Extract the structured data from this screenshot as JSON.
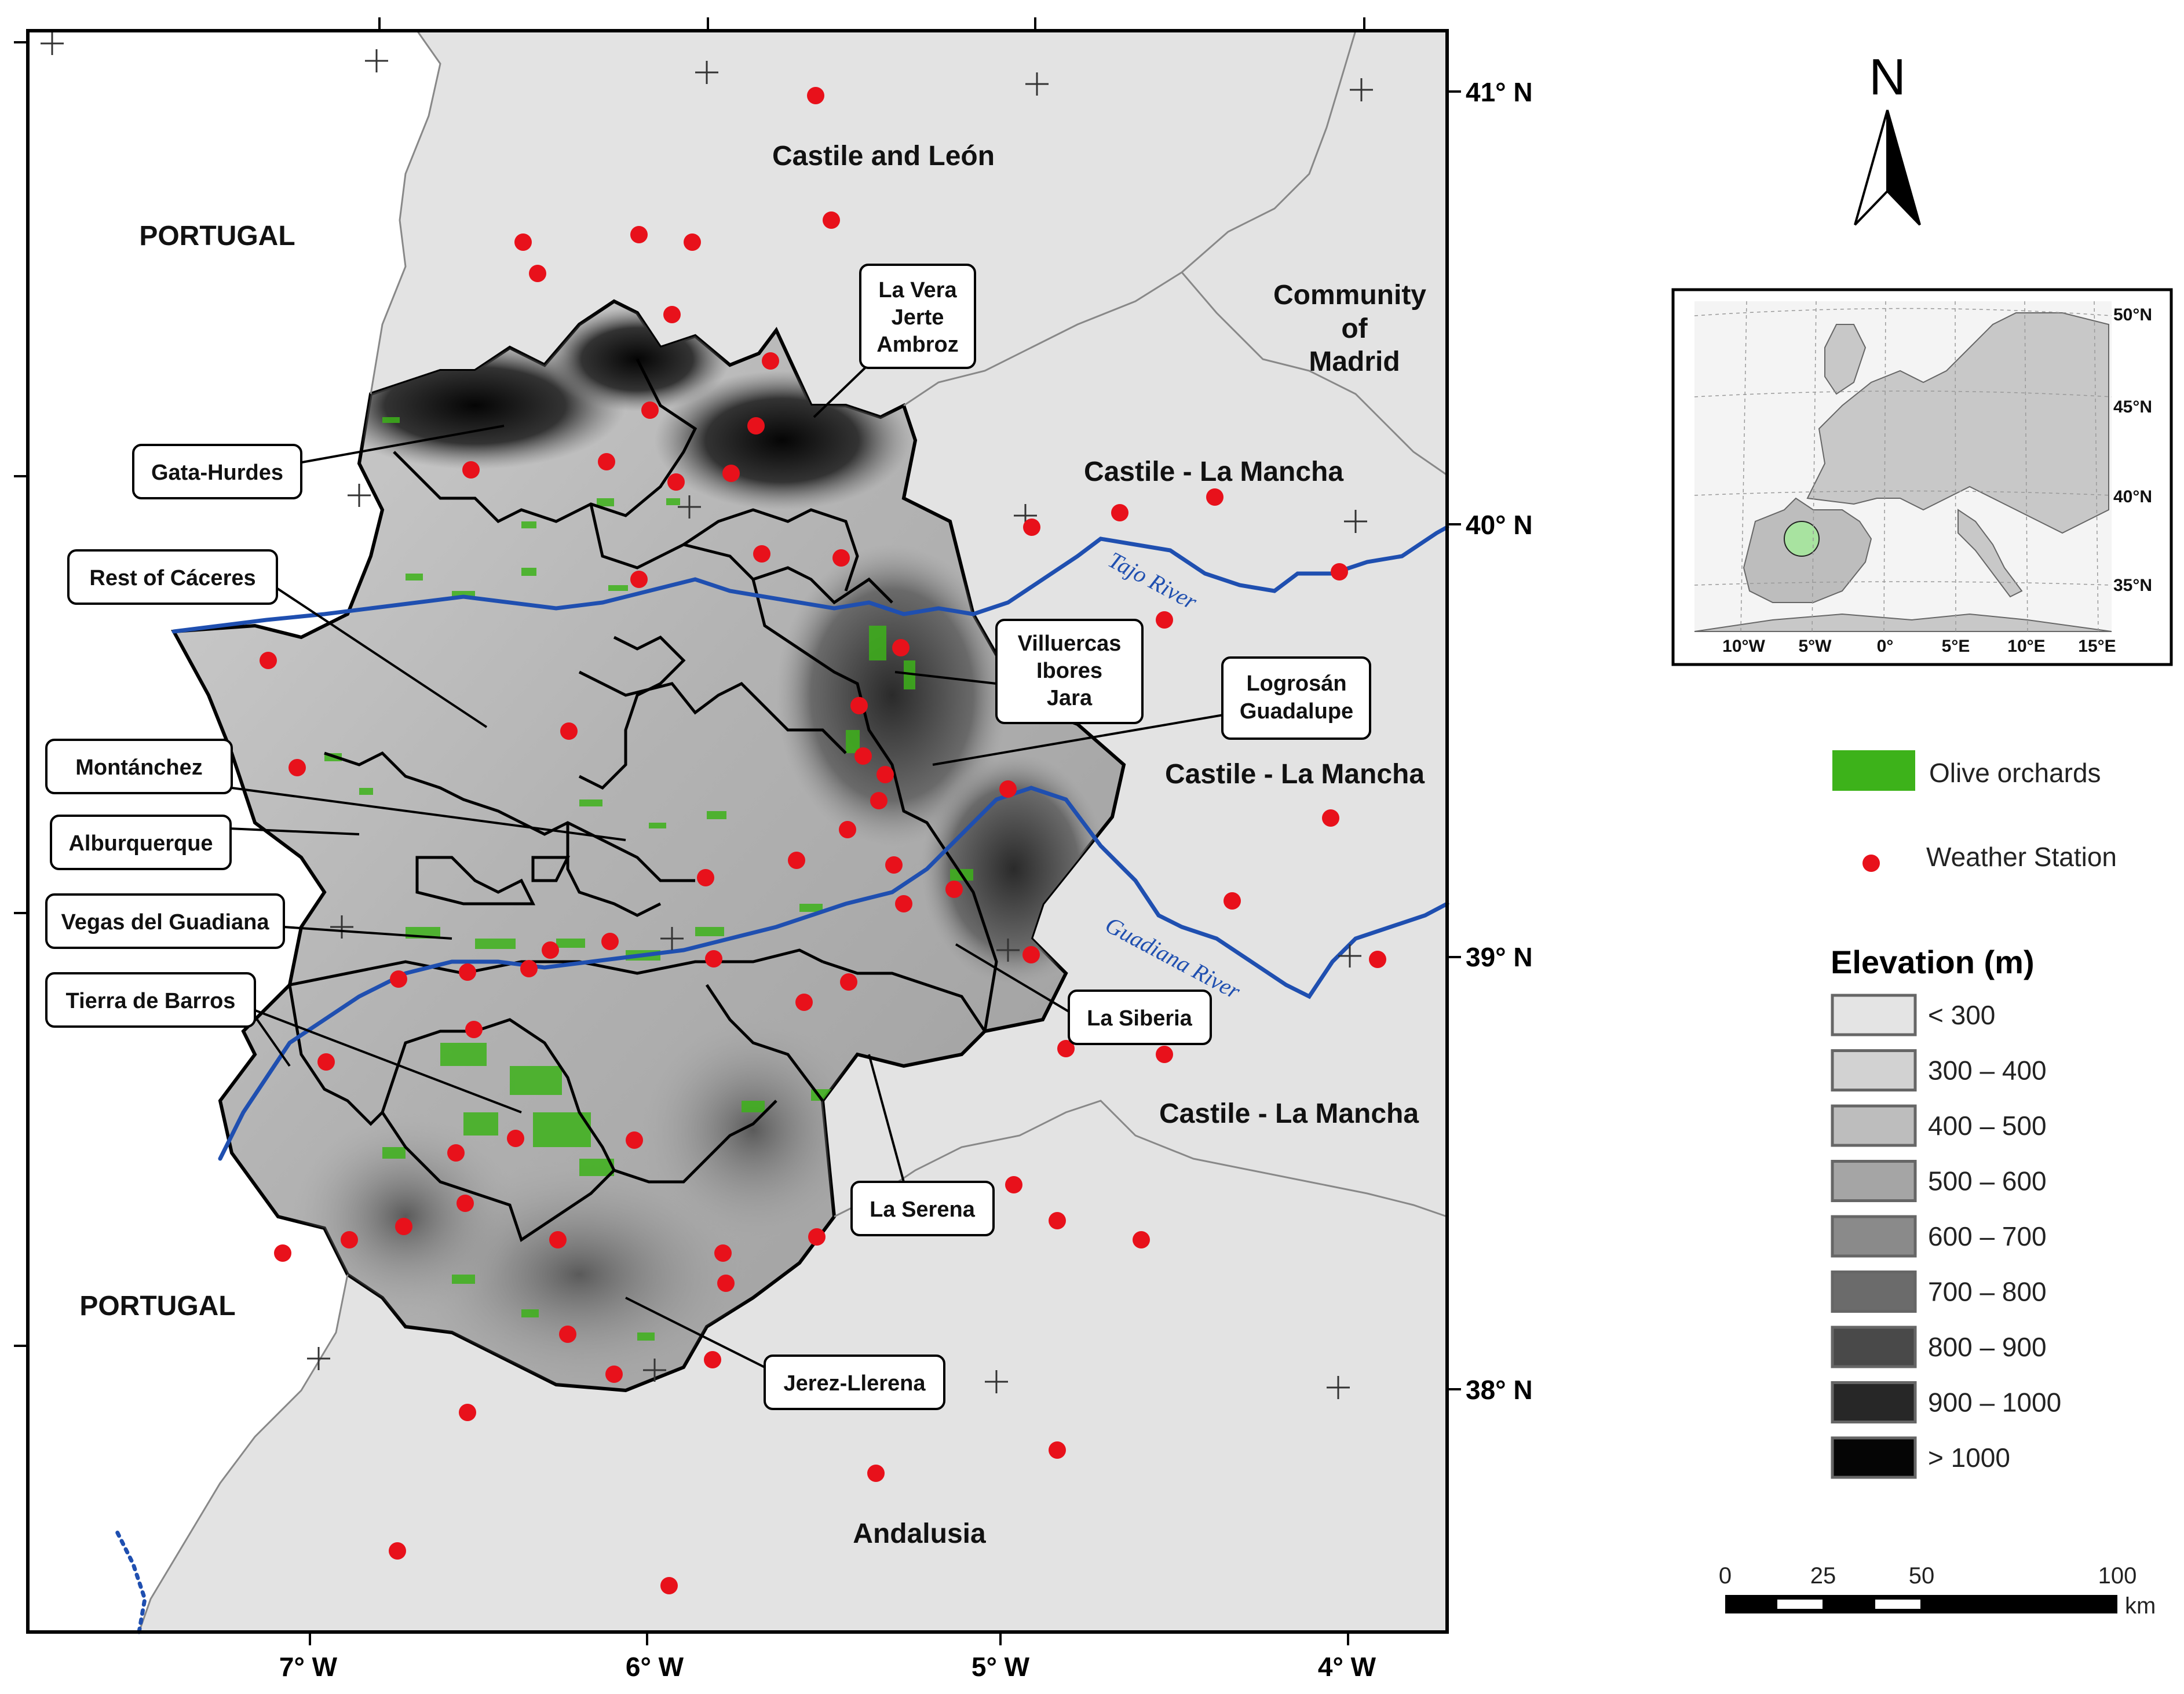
{
  "map": {
    "lat_labels": [
      "41° N",
      "40° N",
      "39° N",
      "38° N"
    ],
    "lon_labels": [
      "7° W",
      "6° W",
      "5° W",
      "4° W"
    ],
    "regions": {
      "castile_leon": "Castile and León",
      "portugal_north": "PORTUGAL",
      "portugal_south": "PORTUGAL",
      "madrid_1": "Community",
      "madrid_2": "of",
      "madrid_3": "Madrid",
      "clm_1": "Castile - La Mancha",
      "clm_2": "Castile - La Mancha",
      "clm_3": "Castile - La Mancha",
      "andalusia": "Andalusia"
    },
    "rivers": {
      "tajo": "Tajo River",
      "guadiana": "Guadiana River"
    },
    "comarcas": {
      "lavera_1": "La Vera",
      "lavera_2": "Jerte",
      "lavera_3": "Ambroz",
      "gata": "Gata-Hurdes",
      "rest_caceres": "Rest of Cáceres",
      "villuercas_1": "Villuercas",
      "villuercas_2": "Ibores",
      "villuercas_3": "Jara",
      "logrosan_1": "Logrosán",
      "logrosan_2": "Guadalupe",
      "montanchez": "Montánchez",
      "alburquerque": "Alburquerque",
      "vegas": "Vegas del Guadiana",
      "tierra": "Tierra de Barros",
      "siberia": "La Siberia",
      "serena": "La Serena",
      "jerez": "Jerez-Llerena"
    }
  },
  "north_arrow": {
    "label": "N"
  },
  "inset": {
    "lat_labels": [
      "50°N",
      "45°N",
      "40°N",
      "35°N"
    ],
    "lon_labels": [
      "10°W",
      "5°W",
      "0°",
      "5°E",
      "10°E",
      "15°E"
    ]
  },
  "legend": {
    "olive_label": "Olive orchards",
    "olive_color": "#3db21a",
    "station_label": "Weather Station",
    "station_color": "#e8111b",
    "elevation_title": "Elevation (m)",
    "classes": [
      {
        "label": "< 300",
        "color": "#e4e4e4"
      },
      {
        "label": "300 – 400",
        "color": "#d2d2d2"
      },
      {
        "label": "400 – 500",
        "color": "#bdbdbd"
      },
      {
        "label": "500 – 600",
        "color": "#a5a5a5"
      },
      {
        "label": "600 – 700",
        "color": "#8a8a8a"
      },
      {
        "label": "700 – 800",
        "color": "#6b6b6b"
      },
      {
        "label": "800 – 900",
        "color": "#494949"
      },
      {
        "label": "900 – 1000",
        "color": "#272727"
      },
      {
        "label": "> 1000",
        "color": "#050505"
      }
    ]
  },
  "scale_bar": {
    "ticks": [
      "0",
      "25",
      "50",
      "100"
    ],
    "unit": "km"
  },
  "colors": {
    "river": "#1f4fb0",
    "background_land": "#e2e2e2"
  }
}
